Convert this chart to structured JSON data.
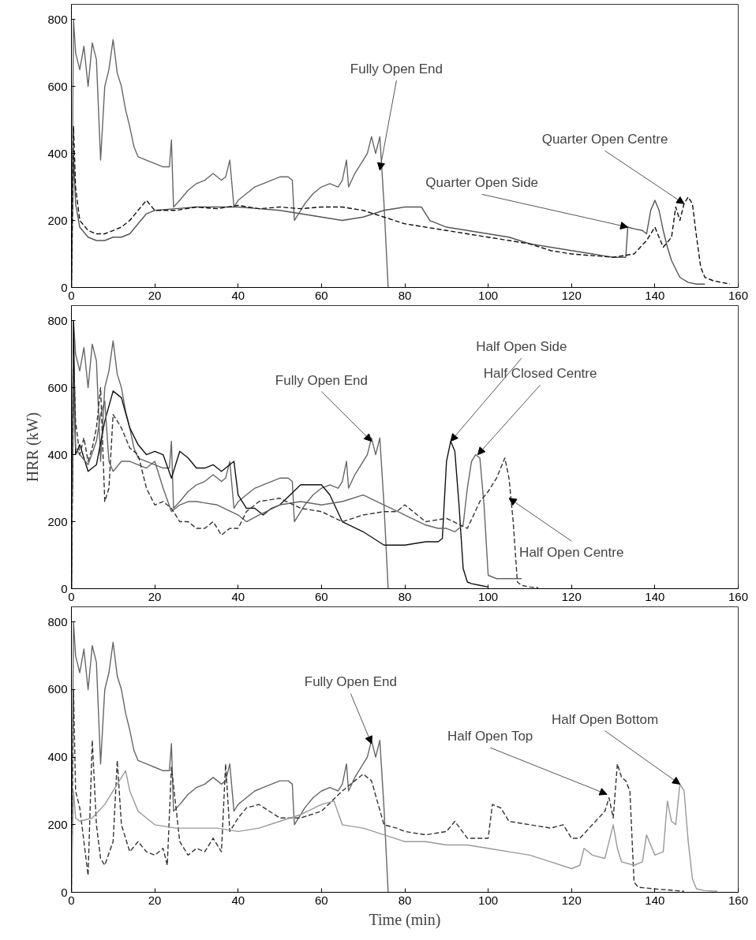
{
  "chart_data": [
    {
      "type": "line",
      "xlim": [
        0,
        160
      ],
      "ylim": [
        0,
        845
      ],
      "xticks": [
        0,
        20,
        40,
        60,
        80,
        100,
        120,
        140,
        160
      ],
      "yticks": [
        0,
        200,
        400,
        600,
        800
      ],
      "grid": false,
      "series": [
        {
          "color": "#666666",
          "line_style": "solid",
          "x": [
            0,
            0.5,
            1,
            2,
            3,
            4,
            5,
            6,
            7,
            8,
            9,
            10,
            11,
            12,
            13,
            14,
            15,
            16,
            18,
            20,
            22,
            23.5,
            24,
            24.5,
            26,
            28,
            30,
            32,
            34,
            36,
            37,
            38,
            39,
            40,
            42,
            44,
            46,
            48,
            50,
            52,
            53,
            53.5,
            56,
            58,
            60,
            62,
            64,
            65,
            66,
            66.5,
            68,
            70,
            71,
            72,
            73,
            74,
            75,
            76
          ],
          "values": [
            0,
            800,
            700,
            650,
            720,
            600,
            730,
            680,
            380,
            600,
            650,
            740,
            640,
            600,
            530,
            480,
            420,
            390,
            380,
            370,
            360,
            360,
            440,
            240,
            260,
            290,
            310,
            320,
            340,
            320,
            330,
            380,
            240,
            260,
            280,
            300,
            310,
            320,
            330,
            330,
            320,
            200,
            250,
            280,
            300,
            310,
            300,
            320,
            380,
            300,
            340,
            380,
            400,
            450,
            400,
            450,
            250,
            0
          ]
        },
        {
          "color": "#555555",
          "line_style": "solid",
          "x": [
            0,
            0.5,
            1,
            2,
            4,
            6,
            8,
            10,
            12,
            14,
            16,
            18,
            20,
            25,
            30,
            35,
            40,
            45,
            50,
            55,
            60,
            65,
            70,
            75,
            80,
            84,
            86,
            90,
            95,
            100,
            105,
            110,
            115,
            120,
            125,
            130,
            133,
            133.5,
            135,
            137,
            138,
            139,
            140,
            141,
            142,
            143,
            144,
            146,
            148,
            150,
            152
          ],
          "values": [
            0,
            400,
            250,
            180,
            150,
            140,
            140,
            150,
            150,
            160,
            190,
            220,
            230,
            235,
            240,
            240,
            240,
            235,
            230,
            220,
            210,
            200,
            210,
            230,
            240,
            240,
            200,
            180,
            170,
            160,
            150,
            130,
            120,
            110,
            100,
            90,
            90,
            180,
            175,
            170,
            160,
            230,
            260,
            230,
            170,
            120,
            80,
            30,
            15,
            10,
            10
          ]
        },
        {
          "color": "#111111",
          "line_style": "dashed",
          "x": [
            0,
            0.5,
            1,
            2,
            4,
            6,
            8,
            10,
            12,
            14,
            16,
            18,
            20,
            25,
            30,
            35,
            40,
            45,
            50,
            55,
            60,
            65,
            70,
            75,
            80,
            85,
            90,
            95,
            100,
            105,
            110,
            115,
            120,
            125,
            130,
            135,
            138,
            140,
            142,
            144,
            145,
            146,
            147,
            148,
            149,
            150,
            151,
            152,
            154,
            156,
            158
          ],
          "values": [
            0,
            480,
            300,
            200,
            170,
            160,
            160,
            170,
            180,
            200,
            230,
            260,
            230,
            230,
            240,
            235,
            245,
            235,
            240,
            235,
            240,
            240,
            230,
            210,
            190,
            180,
            170,
            160,
            150,
            140,
            130,
            110,
            100,
            95,
            90,
            100,
            140,
            180,
            120,
            150,
            240,
            200,
            250,
            270,
            250,
            150,
            60,
            30,
            20,
            15,
            10
          ]
        }
      ],
      "annotations": [
        {
          "text": "Fully Open End",
          "x": 74,
          "y": 350
        },
        {
          "text": "Quarter Open Centre",
          "x": 147,
          "y": 250
        },
        {
          "text": "Quarter Open Side",
          "x": 133.5,
          "y": 180
        }
      ]
    },
    {
      "type": "line",
      "xlim": [
        0,
        160
      ],
      "ylim": [
        0,
        845
      ],
      "xticks": [
        0,
        20,
        40,
        60,
        80,
        100,
        120,
        140,
        160
      ],
      "yticks": [
        0,
        200,
        400,
        600,
        800
      ],
      "ylabel": "HRR (kW)",
      "grid": false,
      "series": [
        {
          "color": "#666666",
          "line_style": "solid",
          "x": [
            0,
            0.5,
            1,
            2,
            3,
            4,
            5,
            6,
            7,
            8,
            9,
            10,
            11,
            12,
            13,
            14,
            15,
            16,
            18,
            20,
            22,
            23.5,
            24,
            24.5,
            26,
            28,
            30,
            32,
            34,
            36,
            37,
            38,
            39,
            40,
            42,
            44,
            46,
            48,
            50,
            52,
            53,
            53.5,
            56,
            58,
            60,
            62,
            64,
            65,
            66,
            66.5,
            68,
            70,
            71,
            72,
            73,
            74,
            75,
            76
          ],
          "values": [
            0,
            800,
            700,
            650,
            720,
            600,
            730,
            680,
            380,
            600,
            650,
            740,
            640,
            600,
            530,
            480,
            420,
            390,
            380,
            370,
            360,
            360,
            440,
            240,
            260,
            290,
            310,
            320,
            340,
            320,
            330,
            380,
            240,
            260,
            280,
            300,
            310,
            320,
            330,
            330,
            320,
            200,
            250,
            280,
            300,
            310,
            300,
            320,
            380,
            300,
            340,
            380,
            400,
            450,
            400,
            450,
            250,
            0
          ]
        },
        {
          "color": "#111111",
          "line_style": "solid",
          "x": [
            0,
            0.5,
            1,
            2,
            4,
            6,
            8,
            10,
            12,
            14,
            16,
            18,
            20,
            22,
            24,
            26,
            28,
            30,
            32,
            34,
            36,
            38,
            39,
            40,
            42,
            44,
            46,
            48,
            50,
            55,
            60,
            62,
            65,
            70,
            75,
            80,
            85,
            88,
            89,
            90,
            91,
            92,
            93,
            94,
            95,
            96,
            98,
            100
          ],
          "values": [
            0,
            800,
            400,
            430,
            350,
            370,
            500,
            590,
            570,
            480,
            430,
            400,
            410,
            400,
            330,
            410,
            390,
            360,
            360,
            370,
            350,
            370,
            380,
            280,
            240,
            240,
            220,
            240,
            250,
            310,
            310,
            280,
            200,
            170,
            130,
            130,
            140,
            140,
            150,
            380,
            440,
            410,
            250,
            60,
            20,
            15,
            10,
            5
          ]
        },
        {
          "color": "#666666",
          "line_style": "solid",
          "x": [
            0,
            0.5,
            1,
            2,
            4,
            6,
            7,
            8,
            9,
            10,
            12,
            14,
            16,
            18,
            20,
            22,
            24,
            26,
            28,
            30,
            35,
            40,
            42,
            45,
            50,
            55,
            60,
            65,
            70,
            75,
            80,
            85,
            88,
            90,
            92,
            94,
            95,
            96,
            97,
            98,
            99,
            100,
            102,
            104,
            106,
            108
          ],
          "values": [
            0,
            600,
            420,
            400,
            370,
            440,
            520,
            560,
            380,
            350,
            380,
            380,
            370,
            360,
            380,
            300,
            230,
            250,
            260,
            260,
            250,
            220,
            200,
            220,
            250,
            260,
            250,
            260,
            280,
            250,
            220,
            190,
            180,
            180,
            170,
            190,
            300,
            380,
            400,
            390,
            250,
            40,
            30,
            30,
            30,
            30
          ]
        },
        {
          "color": "#333333",
          "line_style": "dashed",
          "x": [
            0,
            0.5,
            1,
            2,
            3,
            4,
            5,
            6,
            7,
            8,
            9,
            10,
            12,
            14,
            16,
            18,
            20,
            22,
            24,
            26,
            28,
            30,
            32,
            34,
            36,
            38,
            40,
            42,
            45,
            50,
            55,
            60,
            65,
            70,
            75,
            78,
            80,
            85,
            90,
            95,
            98,
            100,
            102,
            104,
            105,
            106,
            107,
            108,
            110,
            112
          ],
          "values": [
            0,
            700,
            500,
            400,
            450,
            380,
            420,
            480,
            600,
            260,
            300,
            520,
            480,
            420,
            400,
            300,
            250,
            260,
            240,
            200,
            200,
            180,
            180,
            200,
            160,
            180,
            180,
            230,
            260,
            270,
            240,
            230,
            200,
            220,
            230,
            230,
            250,
            200,
            210,
            180,
            260,
            290,
            330,
            390,
            330,
            200,
            20,
            10,
            5,
            3
          ]
        }
      ],
      "annotations": [
        {
          "text": "Fully Open End",
          "x": 72,
          "y": 440
        },
        {
          "text": "Half Open Side",
          "x": 91,
          "y": 440
        },
        {
          "text": "Half Closed Centre",
          "x": 97.5,
          "y": 400
        },
        {
          "text": "Half Open Centre",
          "x": 105,
          "y": 270
        }
      ]
    },
    {
      "type": "line",
      "xlim": [
        0,
        160
      ],
      "ylim": [
        0,
        845
      ],
      "xticks": [
        0,
        20,
        40,
        60,
        80,
        100,
        120,
        140,
        160
      ],
      "yticks": [
        0,
        200,
        400,
        600,
        800
      ],
      "xlabel": "Time (min)",
      "grid": false,
      "series": [
        {
          "color": "#666666",
          "line_style": "solid",
          "x": [
            0,
            0.5,
            1,
            2,
            3,
            4,
            5,
            6,
            7,
            8,
            9,
            10,
            11,
            12,
            13,
            14,
            15,
            16,
            18,
            20,
            22,
            23.5,
            24,
            24.5,
            26,
            28,
            30,
            32,
            34,
            36,
            37,
            38,
            39,
            40,
            42,
            44,
            46,
            48,
            50,
            52,
            53,
            53.5,
            56,
            58,
            60,
            62,
            64,
            65,
            66,
            66.5,
            68,
            70,
            71,
            72,
            73,
            74,
            75,
            76
          ],
          "values": [
            0,
            800,
            700,
            650,
            720,
            600,
            730,
            680,
            380,
            600,
            650,
            740,
            640,
            600,
            530,
            480,
            420,
            390,
            380,
            370,
            360,
            360,
            440,
            240,
            260,
            290,
            310,
            320,
            340,
            320,
            330,
            380,
            240,
            260,
            280,
            300,
            310,
            320,
            330,
            330,
            320,
            200,
            250,
            280,
            300,
            310,
            300,
            320,
            380,
            300,
            340,
            380,
            400,
            450,
            400,
            450,
            250,
            0
          ]
        },
        {
          "color": "#333333",
          "line_style": "dashed",
          "x": [
            0,
            0.5,
            1,
            2,
            3,
            4,
            5,
            6,
            7,
            8,
            10,
            11,
            12,
            14,
            16,
            18,
            20,
            22,
            23,
            24,
            26,
            28,
            30,
            32,
            34,
            36,
            37,
            38,
            40,
            42,
            45,
            50,
            55,
            60,
            65,
            70,
            72,
            75,
            78,
            80,
            85,
            90,
            92,
            95,
            100,
            101,
            103,
            105,
            110,
            115,
            118,
            120,
            122,
            125,
            128,
            129,
            130,
            131,
            132,
            133,
            134,
            135,
            136,
            140,
            145,
            147
          ],
          "values": [
            0,
            600,
            300,
            250,
            150,
            50,
            450,
            200,
            100,
            80,
            150,
            390,
            200,
            120,
            150,
            120,
            110,
            130,
            80,
            370,
            150,
            110,
            130,
            120,
            160,
            120,
            380,
            180,
            220,
            250,
            260,
            220,
            220,
            240,
            300,
            350,
            330,
            200,
            190,
            180,
            170,
            180,
            210,
            160,
            160,
            260,
            250,
            210,
            200,
            190,
            200,
            160,
            160,
            200,
            240,
            280,
            220,
            380,
            340,
            330,
            300,
            30,
            15,
            10,
            5,
            3
          ]
        },
        {
          "color": "#999999",
          "line_style": "solid",
          "x": [
            0,
            0.5,
            1,
            2,
            5,
            8,
            10,
            12,
            13,
            14,
            16,
            20,
            25,
            30,
            35,
            40,
            45,
            50,
            55,
            60,
            63,
            65,
            70,
            75,
            80,
            85,
            90,
            95,
            100,
            105,
            110,
            115,
            120,
            122,
            123,
            125,
            128,
            130,
            131,
            132,
            135,
            137,
            138,
            140,
            142,
            143,
            144,
            145,
            146,
            147,
            148,
            149,
            150,
            152,
            155
          ],
          "values": [
            0,
            300,
            220,
            210,
            220,
            260,
            300,
            340,
            360,
            300,
            240,
            200,
            190,
            190,
            190,
            180,
            190,
            210,
            230,
            260,
            270,
            200,
            190,
            170,
            150,
            150,
            140,
            140,
            130,
            120,
            110,
            90,
            70,
            80,
            130,
            110,
            100,
            200,
            130,
            90,
            80,
            90,
            170,
            110,
            120,
            270,
            210,
            200,
            320,
            300,
            150,
            40,
            10,
            5,
            3
          ]
        }
      ],
      "annotations": [
        {
          "text": "Fully Open End",
          "x": 72,
          "y": 440
        },
        {
          "text": "Half Open Top",
          "x": 128.5,
          "y": 290
        },
        {
          "text": "Half Open Bottom",
          "x": 146,
          "y": 320
        }
      ]
    }
  ]
}
